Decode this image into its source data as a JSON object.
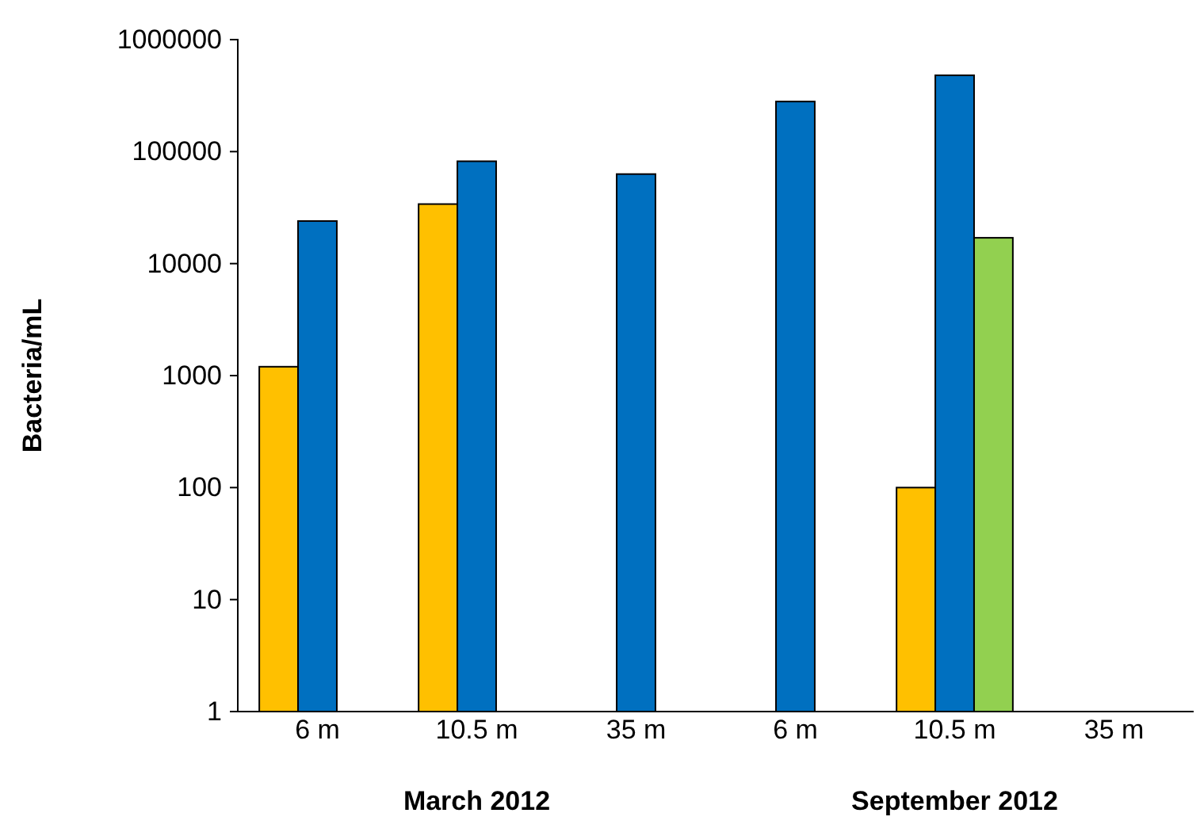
{
  "chart_data": {
    "type": "bar",
    "ylabel": "Bacteria/mL",
    "log": "y",
    "categories": [
      "6 m",
      "10.5 m",
      "35 m",
      "6 m",
      "10.5 m",
      "35 m"
    ],
    "series": [
      {
        "color": "#ffc000",
        "values": [
          1200,
          34000,
          null,
          null,
          100,
          null
        ]
      },
      {
        "color": "#0070c0",
        "values": [
          24000,
          82000,
          63000,
          280000,
          480000,
          null
        ]
      },
      {
        "color": "#92d050",
        "values": [
          null,
          null,
          null,
          null,
          17000,
          null
        ]
      }
    ],
    "ylim": [
      1,
      1000000
    ],
    "yticks": [
      1,
      10,
      100,
      1000,
      10000,
      100000,
      1000000
    ],
    "annotations": [
      "March 2012",
      "September 2012"
    ]
  }
}
